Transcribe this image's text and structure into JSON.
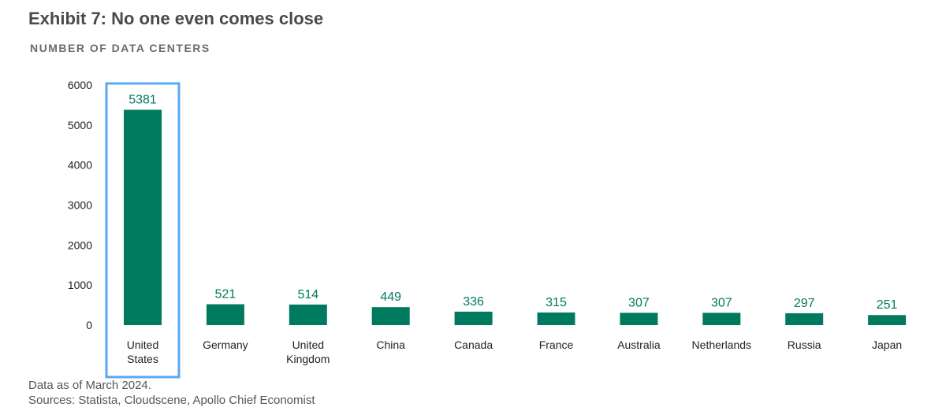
{
  "header": {
    "title": "Exhibit 7: No one even comes close",
    "subtitle": "NUMBER OF DATA CENTERS"
  },
  "chart_data": {
    "type": "bar",
    "categories": [
      [
        "United",
        "States"
      ],
      [
        "Germany"
      ],
      [
        "United",
        "Kingdom"
      ],
      [
        "China"
      ],
      [
        "Canada"
      ],
      [
        "France"
      ],
      [
        "Australia"
      ],
      [
        "Netherlands"
      ],
      [
        "Russia"
      ],
      [
        "Japan"
      ]
    ],
    "values": [
      5381,
      521,
      514,
      449,
      336,
      315,
      307,
      307,
      297,
      251
    ],
    "ylim": [
      0,
      6000
    ],
    "yticks": [
      0,
      1000,
      2000,
      3000,
      4000,
      5000,
      6000
    ],
    "grid": false,
    "bar_color": "#007a5e",
    "label_color": "#007a5e",
    "highlight_index": 0,
    "highlight_color": "#5aa8f0"
  },
  "footer": {
    "note": "Data as of March 2024.",
    "sources": "Sources: Statista, Cloudscene, Apollo Chief Economist"
  }
}
